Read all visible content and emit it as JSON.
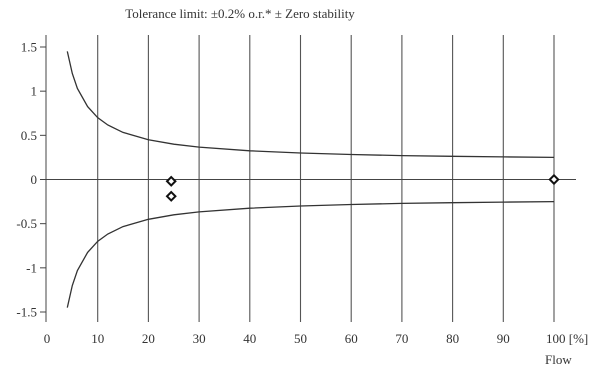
{
  "chart_data": {
    "type": "line",
    "title": "Tolerance limit: ±0.2% o.r.* ± Zero stability",
    "xlabel": "Flow",
    "ylabel": "",
    "xlim": [
      0,
      100
    ],
    "ylim": [
      -1.5,
      1.5
    ],
    "x_ticks": [
      "0",
      "10",
      "20",
      "30",
      "40",
      "50",
      "60",
      "70",
      "80",
      "90",
      "100 [%]"
    ],
    "y_ticks": [
      "1.5",
      "1",
      "0.5",
      "0",
      "-0.5",
      "-1",
      "-1.5"
    ],
    "grid": "vertical",
    "series": [
      {
        "style": "curve",
        "x": [
          4,
          5,
          6,
          8,
          10,
          12,
          15,
          20,
          25,
          30,
          40,
          50,
          60,
          70,
          80,
          90,
          100
        ],
        "y": [
          1.45,
          1.2,
          1.03,
          0.825,
          0.7,
          0.617,
          0.533,
          0.45,
          0.4,
          0.367,
          0.325,
          0.3,
          0.283,
          0.271,
          0.263,
          0.256,
          0.25
        ]
      },
      {
        "style": "curve",
        "x": [
          4,
          5,
          6,
          8,
          10,
          12,
          15,
          20,
          25,
          30,
          40,
          50,
          60,
          70,
          80,
          90,
          100
        ],
        "y": [
          -1.45,
          -1.2,
          -1.03,
          -0.825,
          -0.7,
          -0.617,
          -0.533,
          -0.45,
          -0.4,
          -0.367,
          -0.325,
          -0.3,
          -0.283,
          -0.271,
          -0.263,
          -0.256,
          -0.25
        ]
      },
      {
        "style": "markers",
        "marker": "diamond",
        "x": [
          24.5,
          24.5,
          100
        ],
        "y": [
          -0.02,
          -0.19,
          0.0
        ]
      }
    ]
  }
}
